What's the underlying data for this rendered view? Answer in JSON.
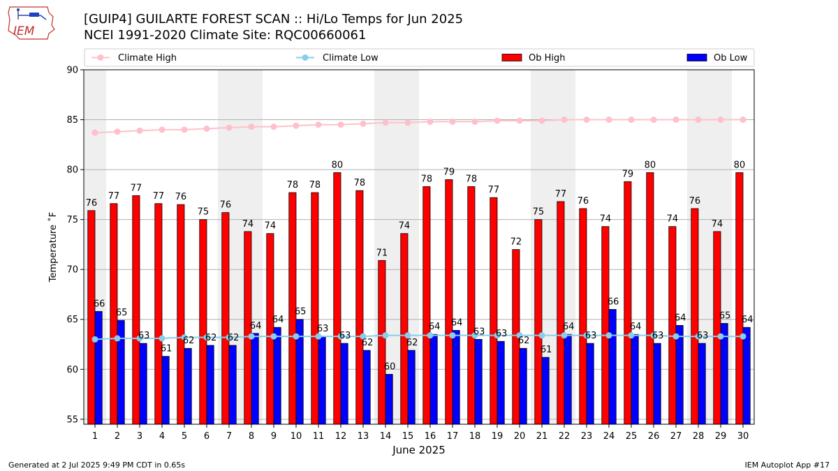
{
  "header": {
    "title_line1": "[GUIP4] GUILARTE FOREST SCAN :: Hi/Lo Temps for Jun 2025",
    "title_line2": "NCEI 1991-2020 Climate Site: RQC00660061",
    "logo_text": "IEM"
  },
  "footer": {
    "generated": "Generated at 2 Jul 2025 9:49 PM CDT in 0.65s",
    "app": "IEM Autoplot App #17"
  },
  "chart_data": {
    "type": "bar",
    "xlabel": "June 2025",
    "ylabel": "Temperature ˚F",
    "ylim": [
      54.5,
      90
    ],
    "yticks": [
      55,
      60,
      65,
      70,
      75,
      80,
      85,
      90
    ],
    "grid": true,
    "legend_position": "top",
    "categories": [
      1,
      2,
      3,
      4,
      5,
      6,
      7,
      8,
      9,
      10,
      11,
      12,
      13,
      14,
      15,
      16,
      17,
      18,
      19,
      20,
      21,
      22,
      23,
      24,
      25,
      26,
      27,
      28,
      29,
      30
    ],
    "shaded_weekends": [
      1,
      7,
      8,
      14,
      15,
      21,
      22,
      28,
      29
    ],
    "series": [
      {
        "name": "Climate High",
        "kind": "line",
        "color": "#ffc0cb",
        "values": [
          83.7,
          83.8,
          83.9,
          84.0,
          84.0,
          84.1,
          84.2,
          84.3,
          84.3,
          84.4,
          84.5,
          84.5,
          84.6,
          84.7,
          84.7,
          84.8,
          84.8,
          84.8,
          84.9,
          84.9,
          84.9,
          85.0,
          85.0,
          85.0,
          85.0,
          85.0,
          85.0,
          85.0,
          85.0,
          85.0
        ]
      },
      {
        "name": "Climate Low",
        "kind": "line",
        "color": "#87ceeb",
        "values": [
          63.0,
          63.1,
          63.1,
          63.1,
          63.2,
          63.2,
          63.2,
          63.3,
          63.3,
          63.3,
          63.3,
          63.3,
          63.3,
          63.4,
          63.4,
          63.4,
          63.4,
          63.4,
          63.4,
          63.4,
          63.4,
          63.4,
          63.4,
          63.4,
          63.4,
          63.4,
          63.3,
          63.3,
          63.3,
          63.3
        ]
      },
      {
        "name": "Ob High",
        "kind": "bar",
        "color": "#ff0000",
        "values": [
          75.9,
          76.6,
          77.4,
          76.6,
          76.5,
          75.0,
          75.7,
          73.8,
          73.6,
          77.7,
          77.7,
          79.7,
          77.9,
          70.9,
          73.6,
          78.3,
          79.0,
          78.3,
          77.2,
          72.0,
          75.0,
          76.8,
          76.1,
          74.3,
          78.8,
          79.7,
          74.3,
          76.1,
          73.8,
          79.7
        ],
        "labels": [
          76,
          77,
          77,
          77,
          76,
          75,
          76,
          74,
          74,
          78,
          78,
          80,
          78,
          71,
          74,
          78,
          79,
          78,
          77,
          72,
          75,
          77,
          76,
          74,
          79,
          80,
          74,
          76,
          74,
          80
        ]
      },
      {
        "name": "Ob Low",
        "kind": "bar",
        "color": "#0000ff",
        "values": [
          65.8,
          64.9,
          62.6,
          61.3,
          62.1,
          62.4,
          62.4,
          63.6,
          64.2,
          65.0,
          63.3,
          62.6,
          61.9,
          59.5,
          61.9,
          63.5,
          63.9,
          63.0,
          62.8,
          62.1,
          61.2,
          63.5,
          62.6,
          66.0,
          63.5,
          62.6,
          64.4,
          62.6,
          64.6,
          64.2
        ],
        "labels": [
          66,
          65,
          63,
          61,
          62,
          62,
          62,
          64,
          64,
          65,
          63,
          63,
          62,
          60,
          62,
          64,
          64,
          63,
          63,
          62,
          61,
          64,
          63,
          66,
          64,
          63,
          64,
          63,
          65,
          64
        ]
      }
    ]
  }
}
